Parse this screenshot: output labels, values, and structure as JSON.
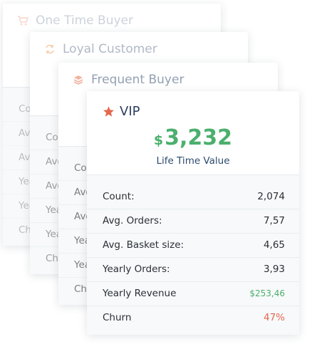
{
  "cards": [
    {
      "title": "One Time Buyer",
      "rows": [
        {
          "label": "Count:"
        },
        {
          "label": "Avg. Orders:"
        },
        {
          "label": "Avg. Basket size:"
        },
        {
          "label": "Yearly Orders:"
        },
        {
          "label": "Yearly Revenue"
        },
        {
          "label": "Churn"
        }
      ]
    },
    {
      "title": "Loyal Customer",
      "rows": [
        {
          "label": "Count:"
        },
        {
          "label": "Avg. Orders:"
        },
        {
          "label": "Avg. Basket size:"
        },
        {
          "label": "Yearly Orders:"
        },
        {
          "label": "Yearly Revenue"
        },
        {
          "label": "Churn"
        }
      ]
    },
    {
      "title": "Frequent Buyer",
      "rows": [
        {
          "label": "Count:"
        },
        {
          "label": "Avg. Orders:"
        },
        {
          "label": "Avg. Basket size:"
        },
        {
          "label": "Yearly Orders:"
        },
        {
          "label": "Yearly Revenue"
        },
        {
          "label": "Churn"
        }
      ]
    },
    {
      "title": "VIP",
      "currency": "$",
      "lifetime_value": "3,232",
      "lifetime_label": "Life Time Value",
      "rows": [
        {
          "label": "Count:",
          "value": "2,074"
        },
        {
          "label": "Avg. Orders:",
          "value": "7,57"
        },
        {
          "label": "Avg. Basket size:",
          "value": "4,65"
        },
        {
          "label": "Yearly Orders:",
          "value": "3,93"
        },
        {
          "label": "Yearly Revenue",
          "value": "$253,46"
        },
        {
          "label": "Churn",
          "value": "47%"
        }
      ]
    }
  ]
}
